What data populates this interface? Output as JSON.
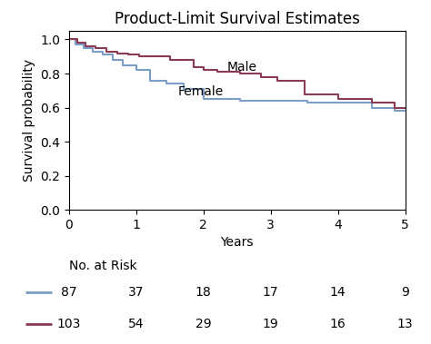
{
  "chart_data": {
    "type": "step",
    "title": "Product-Limit Survival Estimates",
    "x_label": "Years",
    "y_label": "Survival probability",
    "xlim": [
      0,
      5
    ],
    "ylim": [
      0.0,
      1.05
    ],
    "xticks": [
      0,
      1,
      2,
      3,
      4,
      5
    ],
    "yticks": [
      0.0,
      0.2,
      0.4,
      0.6,
      0.8,
      1.0
    ],
    "series": [
      {
        "name": "Female",
        "color": "#7B9EC8",
        "x": [
          0,
          0.1,
          0.22,
          0.35,
          0.5,
          0.65,
          0.8,
          1.0,
          1.2,
          1.45,
          1.7,
          2.0,
          2.55,
          3.0,
          3.55,
          4.5,
          4.85,
          5.0
        ],
        "values": [
          1.0,
          0.97,
          0.95,
          0.93,
          0.91,
          0.88,
          0.85,
          0.82,
          0.76,
          0.74,
          0.71,
          0.65,
          0.64,
          0.64,
          0.63,
          0.6,
          0.58,
          0.58
        ],
        "label_at": [
          1.62,
          0.695
        ],
        "at_risk": [
          87,
          37,
          18,
          17,
          14,
          9
        ]
      },
      {
        "name": "Male",
        "color": "#8B3A52",
        "x": [
          0,
          0.12,
          0.25,
          0.4,
          0.55,
          0.72,
          0.88,
          1.05,
          1.5,
          1.85,
          2.0,
          2.2,
          2.55,
          2.85,
          3.1,
          3.5,
          4.0,
          4.5,
          4.85,
          5.0
        ],
        "values": [
          1.0,
          0.98,
          0.96,
          0.95,
          0.93,
          0.92,
          0.91,
          0.9,
          0.88,
          0.84,
          0.82,
          0.81,
          0.8,
          0.78,
          0.76,
          0.68,
          0.65,
          0.63,
          0.6,
          0.6
        ],
        "label_at": [
          2.35,
          0.835
        ],
        "at_risk": [
          103,
          54,
          29,
          19,
          16,
          13
        ]
      }
    ],
    "risk_table_title": "No. at Risk",
    "risk_x": [
      0,
      1,
      2,
      3,
      4,
      5
    ]
  }
}
